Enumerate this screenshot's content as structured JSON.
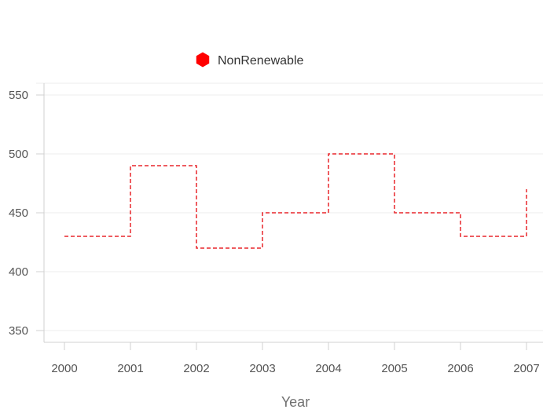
{
  "chart_data": {
    "type": "line",
    "subtype": "step",
    "x_categories": [
      "2000",
      "2001",
      "2002",
      "2003",
      "2004",
      "2005",
      "2006",
      "2007"
    ],
    "series": [
      {
        "name": "NonRenewable",
        "values": [
          430,
          490,
          420,
          450,
          500,
          450,
          430,
          470
        ],
        "color": "#e8262b",
        "line_style": "dashed",
        "legend_marker": "hexagon",
        "legend_marker_color": "#ff0000"
      }
    ],
    "xlabel": "Year",
    "ylabel": "",
    "yticks": [
      350,
      400,
      450,
      500,
      550
    ],
    "ylim": [
      340,
      560
    ],
    "grid": {
      "horizontal": true,
      "vertical": false
    },
    "legend_position": "top-left"
  }
}
